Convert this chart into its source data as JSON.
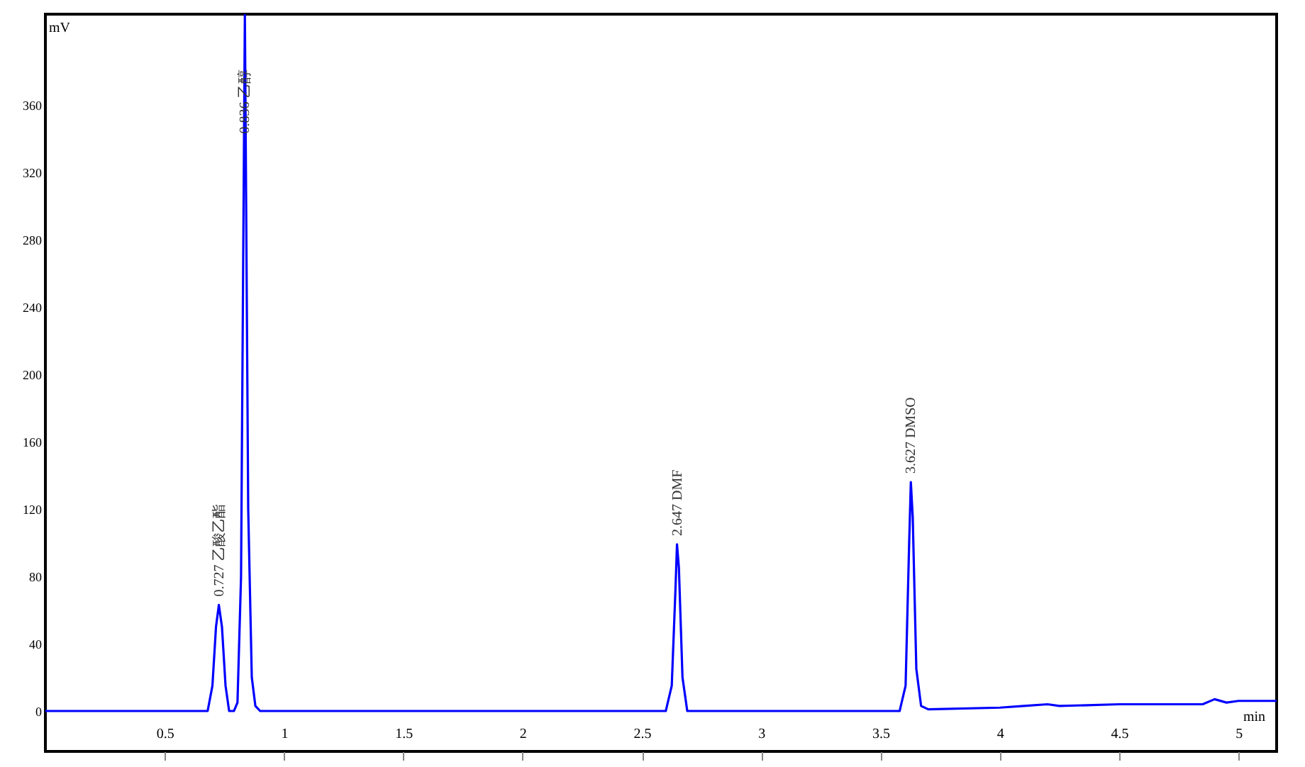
{
  "chart_data": {
    "type": "line",
    "xlabel": "min",
    "ylabel": "mV",
    "x": [
      0,
      0.68,
      0.7,
      0.715,
      0.727,
      0.74,
      0.755,
      0.77,
      0.79,
      0.805,
      0.82,
      0.836,
      0.85,
      0.865,
      0.88,
      0.9,
      0.95,
      2.6,
      2.625,
      2.64,
      2.647,
      2.655,
      2.67,
      2.69,
      2.75,
      3.58,
      3.605,
      3.62,
      3.627,
      3.635,
      3.65,
      3.67,
      3.7,
      4.0,
      4.1,
      4.2,
      4.25,
      4.5,
      4.85,
      4.9,
      4.95,
      5.0,
      5.1,
      5.16
    ],
    "series": [
      {
        "color": "#0000ff",
        "values": [
          0,
          0,
          15,
          50,
          63,
          50,
          15,
          0,
          0,
          5,
          80,
          414,
          120,
          20,
          3,
          0,
          0,
          0,
          15,
          70,
          99,
          85,
          20,
          0,
          0,
          0,
          15,
          100,
          136,
          115,
          25,
          3,
          1,
          2,
          3,
          4,
          3,
          4,
          4,
          7,
          5,
          6,
          6,
          6
        ]
      }
    ],
    "xlim": [
      0,
      5.16
    ],
    "ylim": [
      -24,
      414
    ],
    "xticks": [
      0.5,
      1,
      1.5,
      2,
      2.5,
      3,
      3.5,
      4,
      4.5,
      5
    ],
    "yticks": [
      0,
      40,
      80,
      120,
      160,
      200,
      240,
      280,
      320,
      360
    ],
    "annotations": [
      {
        "text": "0.727 乙酸乙酯",
        "x": 0.727,
        "y": 63
      },
      {
        "text": "0.836 乙醇",
        "x": 0.836,
        "y": 338
      },
      {
        "text": "2.647 DMF",
        "x": 2.647,
        "y": 99
      },
      {
        "text": "3.627 DMSO",
        "x": 3.627,
        "y": 136
      }
    ],
    "grid": false,
    "marker": "none",
    "line_style": "solid"
  }
}
